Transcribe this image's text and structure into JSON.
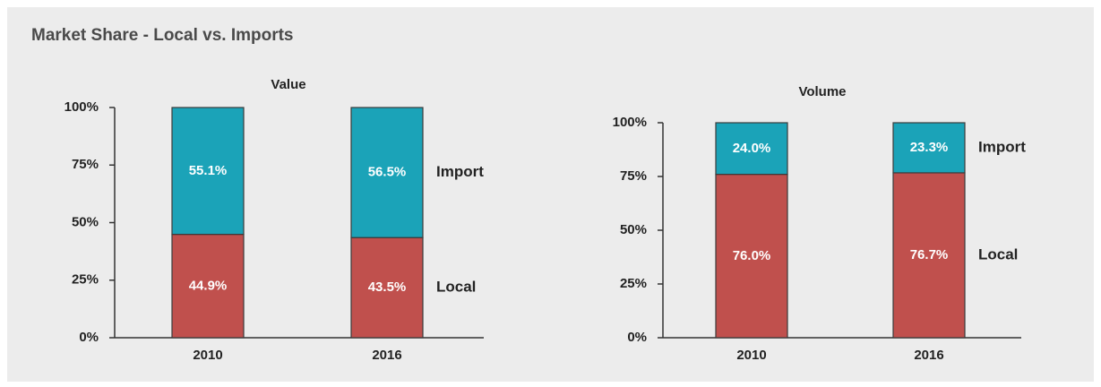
{
  "title": "Market Share - Local vs. Imports",
  "chart_data": [
    {
      "type": "bar",
      "stacked": true,
      "title": "Value",
      "categories": [
        "2010",
        "2016"
      ],
      "series": [
        {
          "name": "Local",
          "color": "#c0504d",
          "values": [
            44.9,
            43.5
          ],
          "value_labels": [
            "44.9%",
            "43.5%"
          ]
        },
        {
          "name": "Import",
          "color": "#1ba3b8",
          "values": [
            55.1,
            56.5
          ],
          "value_labels": [
            "55.1%",
            "56.5%"
          ]
        }
      ],
      "ylim": [
        0,
        100
      ],
      "yticks": [
        {
          "value": 0,
          "label": "0%"
        },
        {
          "value": 25,
          "label": "25%"
        },
        {
          "value": 50,
          "label": "50%"
        },
        {
          "value": 75,
          "label": "75%"
        },
        {
          "value": 100,
          "label": "100%"
        }
      ]
    },
    {
      "type": "bar",
      "stacked": true,
      "title": "Volume",
      "categories": [
        "2010",
        "2016"
      ],
      "series": [
        {
          "name": "Local",
          "color": "#c0504d",
          "values": [
            76.0,
            76.7
          ],
          "value_labels": [
            "76.0%",
            "76.7%"
          ]
        },
        {
          "name": "Import",
          "color": "#1ba3b8",
          "values": [
            24.0,
            23.3
          ],
          "value_labels": [
            "24.0%",
            "23.3%"
          ]
        }
      ],
      "ylim": [
        0,
        100
      ],
      "yticks": [
        {
          "value": 0,
          "label": "0%"
        },
        {
          "value": 25,
          "label": "25%"
        },
        {
          "value": 50,
          "label": "50%"
        },
        {
          "value": 75,
          "label": "75%"
        },
        {
          "value": 100,
          "label": "100%"
        }
      ]
    }
  ]
}
